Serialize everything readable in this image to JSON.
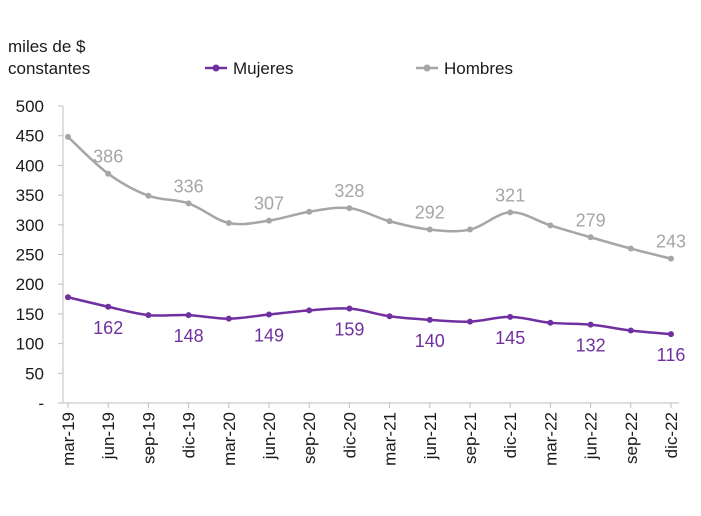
{
  "chart_data": {
    "type": "line",
    "ylabel_lines": [
      "miles de $",
      "constantes"
    ],
    "xlabel": "",
    "ylim": [
      0,
      500
    ],
    "y_ticks": [
      "-",
      "50",
      "100",
      "150",
      "200",
      "250",
      "300",
      "350",
      "400",
      "450",
      "500"
    ],
    "categories": [
      "mar-19",
      "jun-19",
      "sep-19",
      "dic-19",
      "mar-20",
      "jun-20",
      "sep-20",
      "dic-20",
      "mar-21",
      "jun-21",
      "sep-21",
      "dic-21",
      "mar-22",
      "jun-22",
      "sep-22",
      "dic-22"
    ],
    "legend_position": "top",
    "series": [
      {
        "name": "Mujeres",
        "color": "#7030a0",
        "values": [
          178,
          162,
          148,
          148,
          142,
          149,
          156,
          159,
          146,
          140,
          137,
          145,
          135,
          132,
          122,
          116
        ],
        "data_labels": [
          null,
          "162",
          null,
          "148",
          null,
          "149",
          null,
          "159",
          null,
          "140",
          null,
          "145",
          null,
          "132",
          null,
          "116"
        ]
      },
      {
        "name": "Hombres",
        "color": "#a6a6a6",
        "values": [
          448,
          386,
          349,
          336,
          303,
          307,
          322,
          328,
          306,
          292,
          292,
          321,
          299,
          279,
          260,
          243
        ],
        "data_labels": [
          null,
          "386",
          null,
          "336",
          null,
          "307",
          null,
          "328",
          null,
          "292",
          null,
          "321",
          null,
          "279",
          null,
          "243"
        ]
      }
    ]
  }
}
